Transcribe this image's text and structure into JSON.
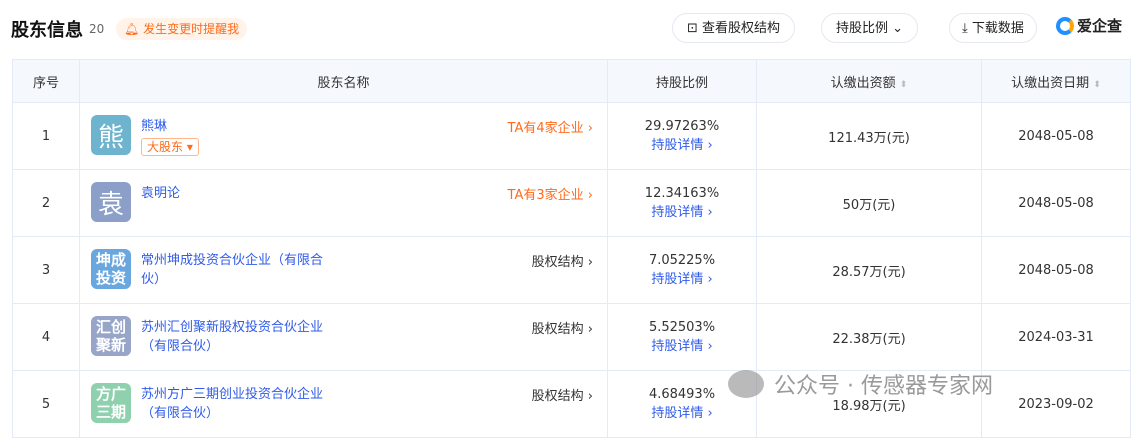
{
  "header": {
    "title": "股东信息",
    "count": "20",
    "remind": "发生变更时提醒我",
    "view_structure": "查看股权结构",
    "ratio_filter": "持股比例",
    "download": "下载数据",
    "logo": "爱企查"
  },
  "columns": [
    "序号",
    "股东名称",
    "持股比例",
    "认缴出资额",
    "认缴出资日期"
  ],
  "sort_icon": "⬍",
  "rows": [
    {
      "no": "1",
      "avatar": "熊",
      "avatar_color": "#6fb4cf",
      "name": "熊琳",
      "tag": "大股东",
      "right": "TA有4家企业",
      "ratio": "29.97263%",
      "detail": "持股详情",
      "amount": "121.43万(元)",
      "date": "2048-05-08"
    },
    {
      "no": "2",
      "avatar": "袁",
      "avatar_color": "#8b9fc9",
      "name": "袁明论",
      "right": "TA有3家企业",
      "ratio": "12.34163%",
      "detail": "持股详情",
      "amount": "50万(元)",
      "date": "2048-05-08"
    },
    {
      "no": "3",
      "avatar": "坤成投资",
      "avatar_color": "#6aa7df",
      "name": "常州坤成投资合伙企业（有限合伙）",
      "right": "股权结构",
      "ratio": "7.05225%",
      "detail": "持股详情",
      "amount": "28.57万(元)",
      "date": "2048-05-08"
    },
    {
      "no": "4",
      "avatar": "汇创聚新",
      "avatar_color": "#97a5c9",
      "name": "苏州汇创聚新股权投资合伙企业（有限合伙）",
      "right": "股权结构",
      "ratio": "5.52503%",
      "detail": "持股详情",
      "amount": "22.38万(元)",
      "date": "2024-03-31"
    },
    {
      "no": "5",
      "avatar": "方广三期",
      "avatar_color": "#8fd0af",
      "name": "苏州方广三期创业投资合伙企业（有限合伙）",
      "right": "股权结构",
      "ratio": "4.68493%",
      "detail": "持股详情",
      "amount": "18.98万(元)",
      "date": "2023-09-02"
    }
  ],
  "watermark": "公众号 · 传感器专家网"
}
